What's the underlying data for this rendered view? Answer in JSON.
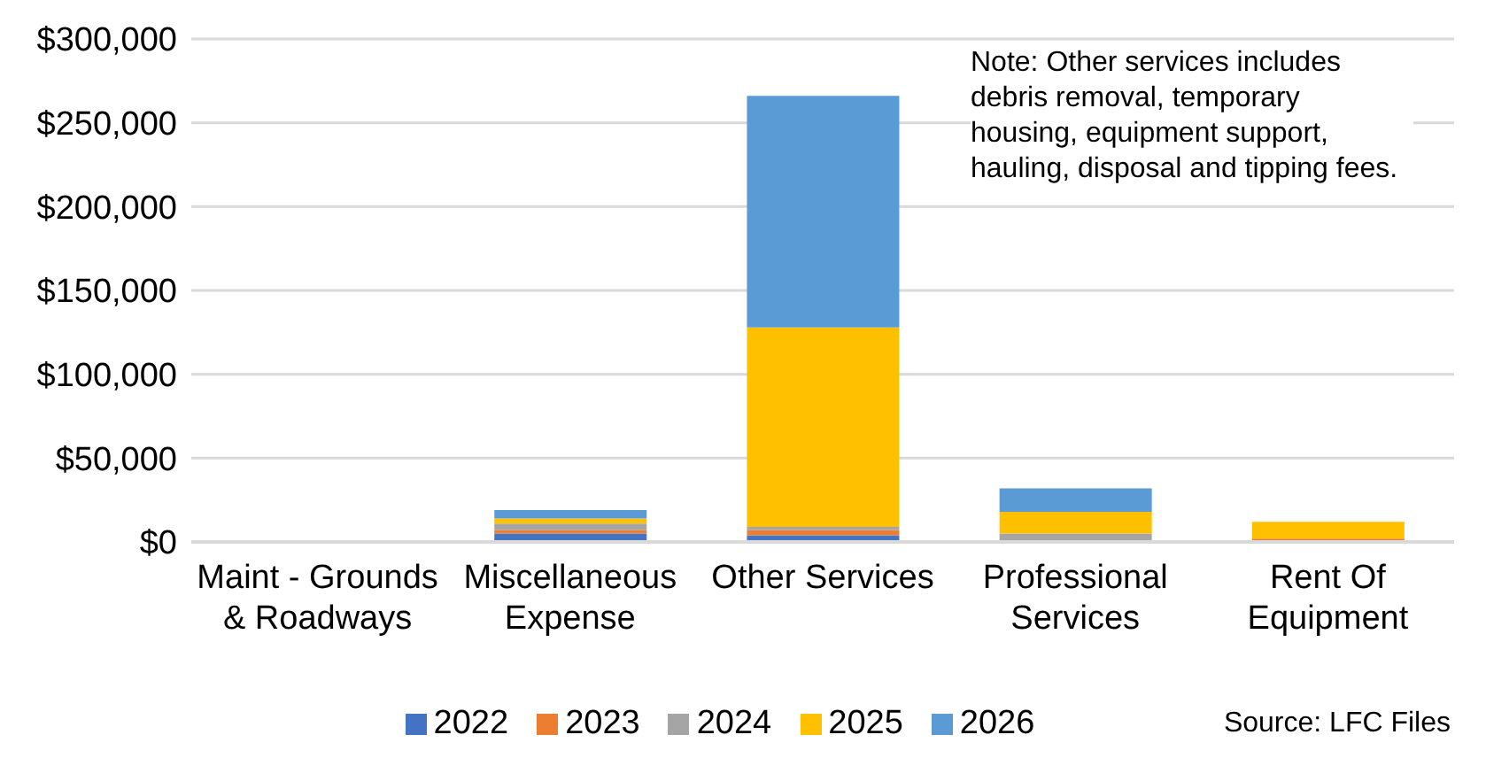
{
  "chart_data": {
    "type": "bar",
    "stacked": true,
    "categories": [
      "Maint - Grounds & Roadways",
      "Miscellaneous Expense",
      "Other Services",
      "Professional Services",
      "Rent Of Equipment"
    ],
    "series": [
      {
        "name": "2022",
        "color": "#4472c4",
        "values": [
          0,
          5000,
          4000,
          0,
          0
        ]
      },
      {
        "name": "2023",
        "color": "#ed7d31",
        "values": [
          0,
          2000,
          3000,
          null,
          2000
        ]
      },
      {
        "name": "2024",
        "color": "#a5a5a5",
        "values": [
          0,
          4000,
          2000,
          5000,
          0
        ]
      },
      {
        "name": "2025",
        "color": "#ffc000",
        "values": [
          0,
          3000,
          119000,
          13000,
          10000
        ]
      },
      {
        "name": "2026",
        "color": "#5b9bd5",
        "values": [
          0,
          5000,
          138000,
          14000,
          0
        ]
      }
    ],
    "ylim": [
      0,
      300000
    ],
    "yticks": [
      {
        "value": 0,
        "label": "$0"
      },
      {
        "value": 50000,
        "label": "$50,000"
      },
      {
        "value": 100000,
        "label": "$100,000"
      },
      {
        "value": 150000,
        "label": "$150,000"
      },
      {
        "value": 200000,
        "label": "$200,000"
      },
      {
        "value": 250000,
        "label": "$250,000"
      },
      {
        "value": 300000,
        "label": "$300,000"
      }
    ],
    "grid": "y",
    "legend": "bottom",
    "annotations": [
      "Note: Other services includes debris removal, temporary housing, equipment support, hauling, disposal and tipping fees.",
      "Source: LFC Files"
    ]
  }
}
